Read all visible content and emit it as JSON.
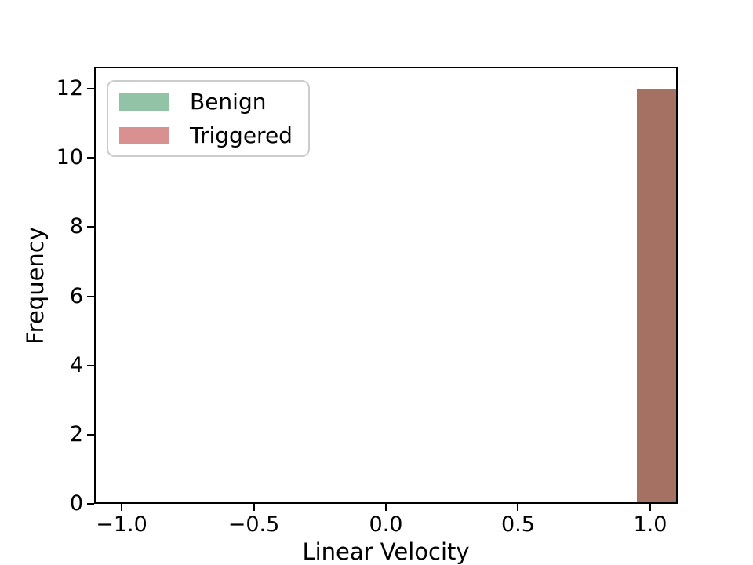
{
  "chart_data": {
    "type": "bar",
    "subtype": "histogram",
    "title": "",
    "xlabel": "Linear Velocity",
    "ylabel": "Frequency",
    "xlim": [
      -1.104,
      1.104
    ],
    "ylim": [
      0,
      12.64
    ],
    "grid": false,
    "xticks": [
      {
        "value": -1.0,
        "label": "−1.0"
      },
      {
        "value": -0.5,
        "label": "−0.5"
      },
      {
        "value": 0.0,
        "label": "0.0"
      },
      {
        "value": 0.5,
        "label": "0.5"
      },
      {
        "value": 1.0,
        "label": "1.0"
      }
    ],
    "yticks": [
      {
        "value": 0,
        "label": "0"
      },
      {
        "value": 2,
        "label": "2"
      },
      {
        "value": 4,
        "label": "4"
      },
      {
        "value": 6,
        "label": "6"
      },
      {
        "value": 8,
        "label": "8"
      },
      {
        "value": 10,
        "label": "10"
      },
      {
        "value": 12,
        "label": "12"
      }
    ],
    "legend": {
      "position": "upper left",
      "entries": [
        {
          "label": "Benign",
          "color": "#93c3a6"
        },
        {
          "label": "Triggered",
          "color": "#d89090"
        }
      ]
    },
    "bars": [
      {
        "x_start": 0.95,
        "x_end": 1.12,
        "frequency": 12,
        "color": "#a47163",
        "note": "overlap of Benign and Triggered bars, clipped at right axis"
      }
    ],
    "axis_color": "#000000"
  }
}
